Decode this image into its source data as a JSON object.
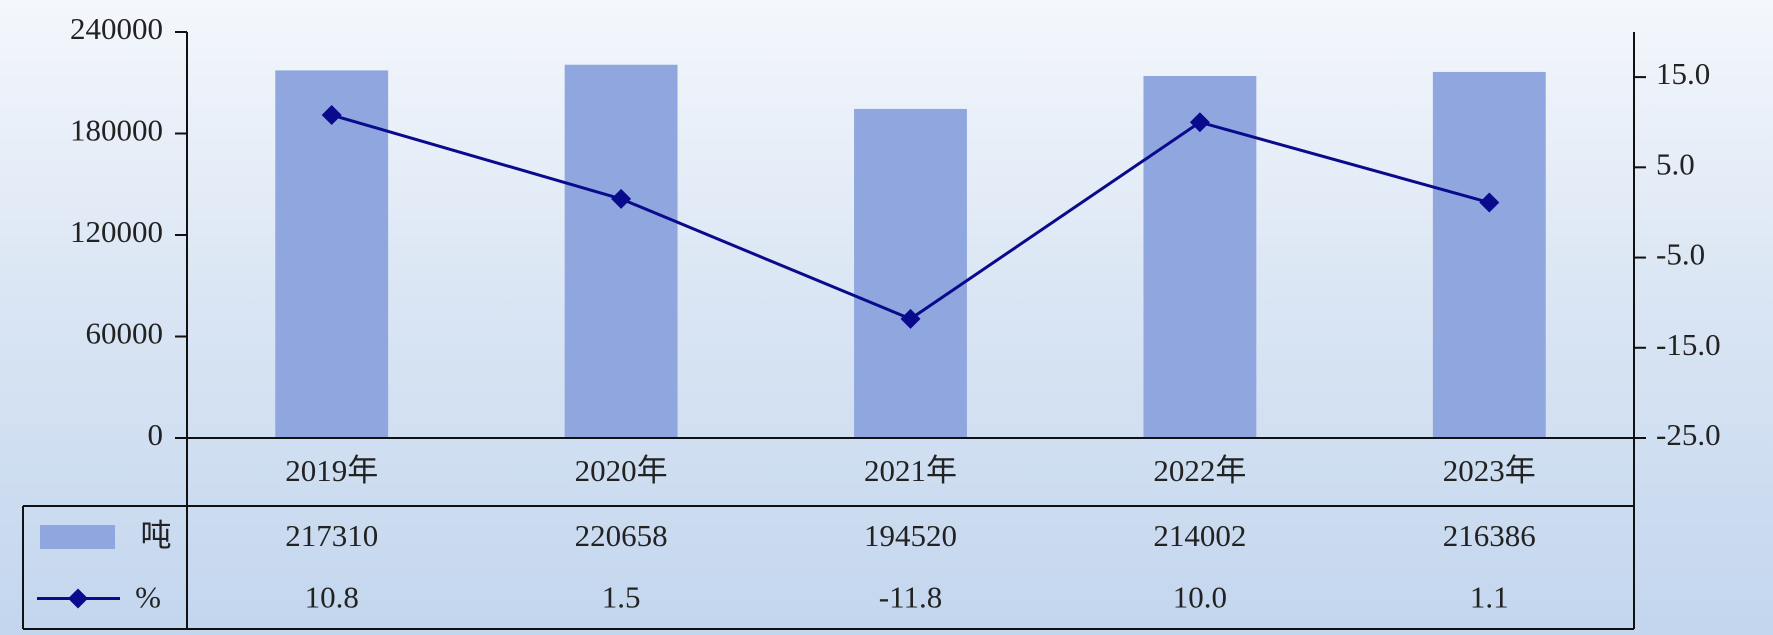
{
  "chart_data": {
    "type": "bar-line",
    "categories": [
      "2019年",
      "2020年",
      "2021年",
      "2022年",
      "2023年"
    ],
    "series": [
      {
        "name": "吨",
        "type": "bar",
        "color": "#8fa7de",
        "values": [
          217310,
          220658,
          194520,
          214002,
          216386
        ]
      },
      {
        "name": "%",
        "type": "line",
        "color": "#0a0a8c",
        "axis": "y2",
        "values": [
          10.8,
          1.5,
          -11.8,
          10.0,
          1.1
        ],
        "value_labels": [
          "10.8",
          "1.5",
          "-11.8",
          "10.0",
          "1.1"
        ]
      }
    ],
    "ylim": [
      0,
      240000
    ],
    "yticks": [
      0,
      60000,
      120000,
      180000,
      240000
    ],
    "y2lim": [
      -25,
      20
    ],
    "y2ticks": [
      {
        "value": -25,
        "label": "-25.0"
      },
      {
        "value": -15,
        "label": "-15.0"
      },
      {
        "value": -5,
        "label": "-5.0"
      },
      {
        "value": 5,
        "label": "5.0"
      },
      {
        "value": 15,
        "label": "15.0"
      }
    ]
  }
}
